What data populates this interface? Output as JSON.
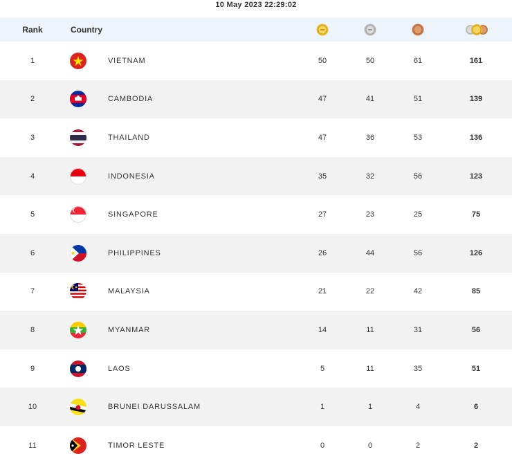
{
  "timestamp": "10 May 2023  22:29:02",
  "header": {
    "rank": "Rank",
    "country": "Country",
    "gold_icon": "gold-medal-icon",
    "silver_icon": "silver-medal-icon",
    "bronze_icon": "bronze-medal-icon",
    "total_icon": "total-medals-icon"
  },
  "colors": {
    "header_bg": "#eef4fb",
    "row_alt_bg": "#f2f2f2",
    "gold": "#e8b923",
    "silver": "#bdbdbd",
    "bronze": "#c87b4a"
  },
  "rows": [
    {
      "rank": "1",
      "country": "VIETNAM",
      "flag": "vietnam-flag-icon",
      "gold": "50",
      "silver": "50",
      "bronze": "61",
      "total": "161"
    },
    {
      "rank": "2",
      "country": "CAMBODIA",
      "flag": "cambodia-flag-icon",
      "gold": "47",
      "silver": "41",
      "bronze": "51",
      "total": "139"
    },
    {
      "rank": "3",
      "country": "THAILAND",
      "flag": "thailand-flag-icon",
      "gold": "47",
      "silver": "36",
      "bronze": "53",
      "total": "136"
    },
    {
      "rank": "4",
      "country": "INDONESIA",
      "flag": "indonesia-flag-icon",
      "gold": "35",
      "silver": "32",
      "bronze": "56",
      "total": "123"
    },
    {
      "rank": "5",
      "country": "SINGAPORE",
      "flag": "singapore-flag-icon",
      "gold": "27",
      "silver": "23",
      "bronze": "25",
      "total": "75"
    },
    {
      "rank": "6",
      "country": "PHILIPPINES",
      "flag": "philippines-flag-icon",
      "gold": "26",
      "silver": "44",
      "bronze": "56",
      "total": "126"
    },
    {
      "rank": "7",
      "country": "MALAYSIA",
      "flag": "malaysia-flag-icon",
      "gold": "21",
      "silver": "22",
      "bronze": "42",
      "total": "85"
    },
    {
      "rank": "8",
      "country": "MYANMAR",
      "flag": "myanmar-flag-icon",
      "gold": "14",
      "silver": "11",
      "bronze": "31",
      "total": "56"
    },
    {
      "rank": "9",
      "country": "LAOS",
      "flag": "laos-flag-icon",
      "gold": "5",
      "silver": "11",
      "bronze": "35",
      "total": "51"
    },
    {
      "rank": "10",
      "country": "BRUNEI DARUSSALAM",
      "flag": "brunei-flag-icon",
      "gold": "1",
      "silver": "1",
      "bronze": "4",
      "total": "6"
    },
    {
      "rank": "11",
      "country": "TIMOR LESTE",
      "flag": "timor-leste-flag-icon",
      "gold": "0",
      "silver": "0",
      "bronze": "2",
      "total": "2"
    }
  ]
}
